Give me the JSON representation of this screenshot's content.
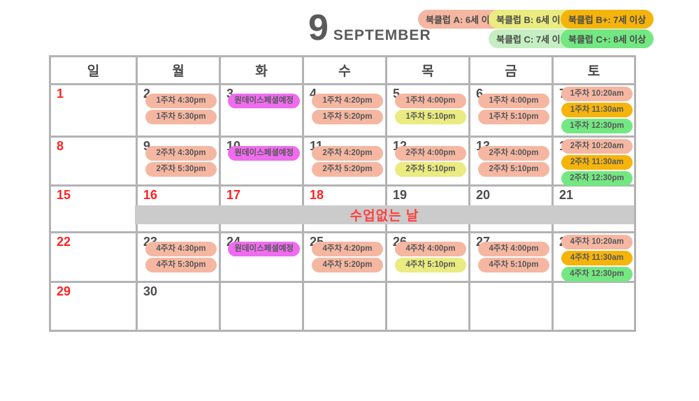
{
  "title": {
    "month_number": "9",
    "month_name": "SEPTEMBER"
  },
  "legend": [
    {
      "label": "북클럽 A: 6세 이하",
      "color_key": "a"
    },
    {
      "label": "북클럽 B: 6세 이상",
      "color_key": "b"
    },
    {
      "label": "북클럽 B+: 7세 이상",
      "color_key": "bp"
    },
    {
      "label": "북클럽 C: 7세 이상",
      "color_key": "c"
    },
    {
      "label": "북클럽 C+: 8세 이상",
      "color_key": "cp"
    }
  ],
  "weekdays": [
    "일",
    "월",
    "화",
    "수",
    "목",
    "금",
    "토"
  ],
  "no_class_banner": "수업없는 날",
  "colors": {
    "a": "#F5B7A2",
    "b": "#EAEB80",
    "bp": "#F5B40C",
    "c": "#C5EFC2",
    "cp": "#73E882",
    "special": "#EF6CEF",
    "banner_bg": "#CBCBCB",
    "holiday_red": "#FF2222",
    "grid_line": "#B3B3B3",
    "day_number_gray": "#4D4D4D"
  },
  "weeks": [
    [
      {
        "day": "1",
        "red": true,
        "events": []
      },
      {
        "day": "2",
        "red": false,
        "events": [
          {
            "text": "1주차 4:30pm",
            "color": "a"
          },
          {
            "text": "1주차 5:30pm",
            "color": "a"
          }
        ]
      },
      {
        "day": "3",
        "red": false,
        "events": [
          {
            "text": "원데이스페셜예정",
            "color": "special"
          }
        ]
      },
      {
        "day": "4",
        "red": false,
        "events": [
          {
            "text": "1주차 4:20pm",
            "color": "a"
          },
          {
            "text": "1주차 5:20pm",
            "color": "a"
          }
        ]
      },
      {
        "day": "5",
        "red": false,
        "events": [
          {
            "text": "1주차 4:00pm",
            "color": "a"
          },
          {
            "text": "1주차 5:10pm",
            "color": "b"
          }
        ]
      },
      {
        "day": "6",
        "red": false,
        "events": [
          {
            "text": "1주차 4:00pm",
            "color": "a"
          },
          {
            "text": "1주차 5:10pm",
            "color": "a"
          }
        ]
      },
      {
        "day": "7",
        "red": false,
        "events": [
          {
            "text": "1주차 10:20am",
            "color": "a"
          },
          {
            "text": "1주차 11:30am",
            "color": "bp"
          },
          {
            "text": "1주차 12:30pm",
            "color": "cp"
          }
        ]
      }
    ],
    [
      {
        "day": "8",
        "red": true,
        "events": []
      },
      {
        "day": "9",
        "red": false,
        "events": [
          {
            "text": "2주차 4:30pm",
            "color": "a"
          },
          {
            "text": "2주차 5:30pm",
            "color": "a"
          }
        ]
      },
      {
        "day": "10",
        "red": false,
        "events": [
          {
            "text": "원데이스페셜예정",
            "color": "special"
          }
        ]
      },
      {
        "day": "11",
        "red": false,
        "events": [
          {
            "text": "2주차 4:20pm",
            "color": "a"
          },
          {
            "text": "2주차 5:20pm",
            "color": "a"
          }
        ]
      },
      {
        "day": "12",
        "red": false,
        "events": [
          {
            "text": "2주차 4:00pm",
            "color": "a"
          },
          {
            "text": "2주차 5:10pm",
            "color": "b"
          }
        ]
      },
      {
        "day": "13",
        "red": false,
        "events": [
          {
            "text": "2주차 4:00pm",
            "color": "a"
          },
          {
            "text": "2주차 5:10pm",
            "color": "a"
          }
        ]
      },
      {
        "day": "14",
        "red": false,
        "events": [
          {
            "text": "2주차 10:20am",
            "color": "a"
          },
          {
            "text": "2주차 11:30am",
            "color": "bp"
          },
          {
            "text": "2주차 12:30pm",
            "color": "cp"
          }
        ]
      }
    ],
    [
      {
        "day": "15",
        "red": true,
        "events": []
      },
      {
        "day": "16",
        "red": true,
        "events": []
      },
      {
        "day": "17",
        "red": true,
        "events": []
      },
      {
        "day": "18",
        "red": true,
        "events": []
      },
      {
        "day": "19",
        "red": false,
        "events": []
      },
      {
        "day": "20",
        "red": false,
        "events": []
      },
      {
        "day": "21",
        "red": false,
        "events": []
      }
    ],
    [
      {
        "day": "22",
        "red": true,
        "events": []
      },
      {
        "day": "23",
        "red": false,
        "events": [
          {
            "text": "4주차 4:30pm",
            "color": "a"
          },
          {
            "text": "4주차 5:30pm",
            "color": "a"
          }
        ]
      },
      {
        "day": "24",
        "red": false,
        "events": [
          {
            "text": "원데이스페셜예정",
            "color": "special"
          }
        ]
      },
      {
        "day": "25",
        "red": false,
        "events": [
          {
            "text": "4주차 4:20pm",
            "color": "a"
          },
          {
            "text": "4주차 5:20pm",
            "color": "a"
          }
        ]
      },
      {
        "day": "26",
        "red": false,
        "events": [
          {
            "text": "4주차 4:00pm",
            "color": "a"
          },
          {
            "text": "4주차 5:10pm",
            "color": "b"
          }
        ]
      },
      {
        "day": "27",
        "red": false,
        "events": [
          {
            "text": "4주차 4:00pm",
            "color": "a"
          },
          {
            "text": "4주차 5:10pm",
            "color": "a"
          }
        ]
      },
      {
        "day": "28",
        "red": false,
        "events": [
          {
            "text": "4주차 10:20am",
            "color": "a"
          },
          {
            "text": "4주차 11:30am",
            "color": "bp"
          },
          {
            "text": "4주차 12:30pm",
            "color": "cp"
          }
        ]
      }
    ],
    [
      {
        "day": "29",
        "red": true,
        "events": []
      },
      {
        "day": "30",
        "red": false,
        "events": []
      },
      {
        "day": "",
        "red": false,
        "events": []
      },
      {
        "day": "",
        "red": false,
        "events": []
      },
      {
        "day": "",
        "red": false,
        "events": []
      },
      {
        "day": "",
        "red": false,
        "events": []
      },
      {
        "day": "",
        "red": false,
        "events": []
      }
    ]
  ]
}
